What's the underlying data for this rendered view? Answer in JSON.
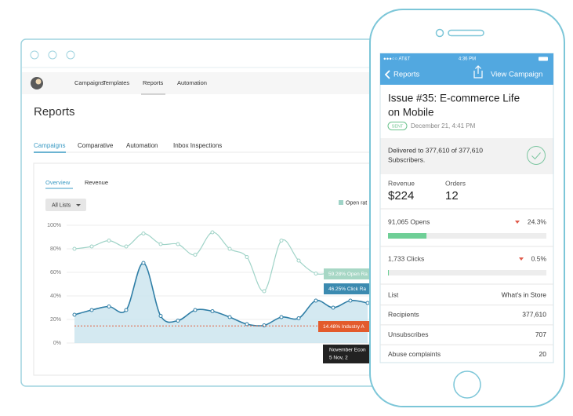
{
  "browser": {
    "nav": [
      "Campaigns",
      "Templates",
      "Reports",
      "Automation"
    ],
    "title": "Reports",
    "tabs": [
      "Campaigns",
      "Comparative",
      "Automation",
      "Inbox Inspections"
    ],
    "subtabs": [
      "Overview",
      "Revenue"
    ],
    "list_filter": "All Lists",
    "legend": "Open rat",
    "chart": {
      "type": "line",
      "ylim": [
        0,
        100
      ],
      "yticks": [
        {
          "value": 0,
          "label": "0%"
        },
        {
          "value": 20,
          "label": "20%"
        },
        {
          "value": 40,
          "label": "40%"
        },
        {
          "value": 60,
          "label": "60%"
        },
        {
          "value": 80,
          "label": "80%"
        },
        {
          "value": 100,
          "label": "100%"
        }
      ],
      "grid": true,
      "series": [
        {
          "color": "#9fd3c7",
          "values": [
            80,
            82,
            87,
            82,
            93,
            84,
            84,
            75,
            94,
            80,
            73,
            44,
            87,
            70,
            59,
            60,
            59,
            60
          ]
        },
        {
          "color": "#2f7ea6",
          "area": true,
          "values": [
            24,
            28,
            31,
            28,
            68,
            23,
            19,
            28,
            27,
            22,
            16,
            15,
            22,
            21,
            36,
            30,
            36,
            34
          ]
        }
      ],
      "reference_line": {
        "color": "#e06040",
        "value": 14.48
      },
      "annotations": [
        "59.28% Open Ra",
        "46.25% Click Ra",
        "14.48% Industry A"
      ],
      "tooltip": [
        "November Econ",
        "5 Nov, 2"
      ]
    }
  },
  "phone": {
    "status": [
      "●●●○○ AT&T",
      "4:36 PM"
    ],
    "back": "Reports",
    "action": "View Campaign",
    "title_lines": [
      "Issue #35: E-commerce Life",
      "on Mobile"
    ],
    "badge": "SENT",
    "date": "December 21, 4:41 PM",
    "delivered_lines": [
      "Delivered to 377,610 of 377,610",
      "Subscribers."
    ],
    "revenue": {
      "label": "Revenue",
      "value": "$224"
    },
    "orders": {
      "label": "Orders",
      "value": "12"
    },
    "opens": {
      "label": "91,065 Opens",
      "change": {
        "value": 24.3,
        "label": "24.3%"
      }
    },
    "clicks": {
      "label": "1,733 Clicks",
      "change": {
        "value": 0.5,
        "label": "0.5%"
      }
    },
    "table": [
      [
        "List",
        "What's in Store"
      ],
      [
        "Recipients",
        "377,610"
      ],
      [
        "Unsubscribes",
        "707"
      ],
      [
        "Abuse complaints",
        "20"
      ]
    ]
  }
}
